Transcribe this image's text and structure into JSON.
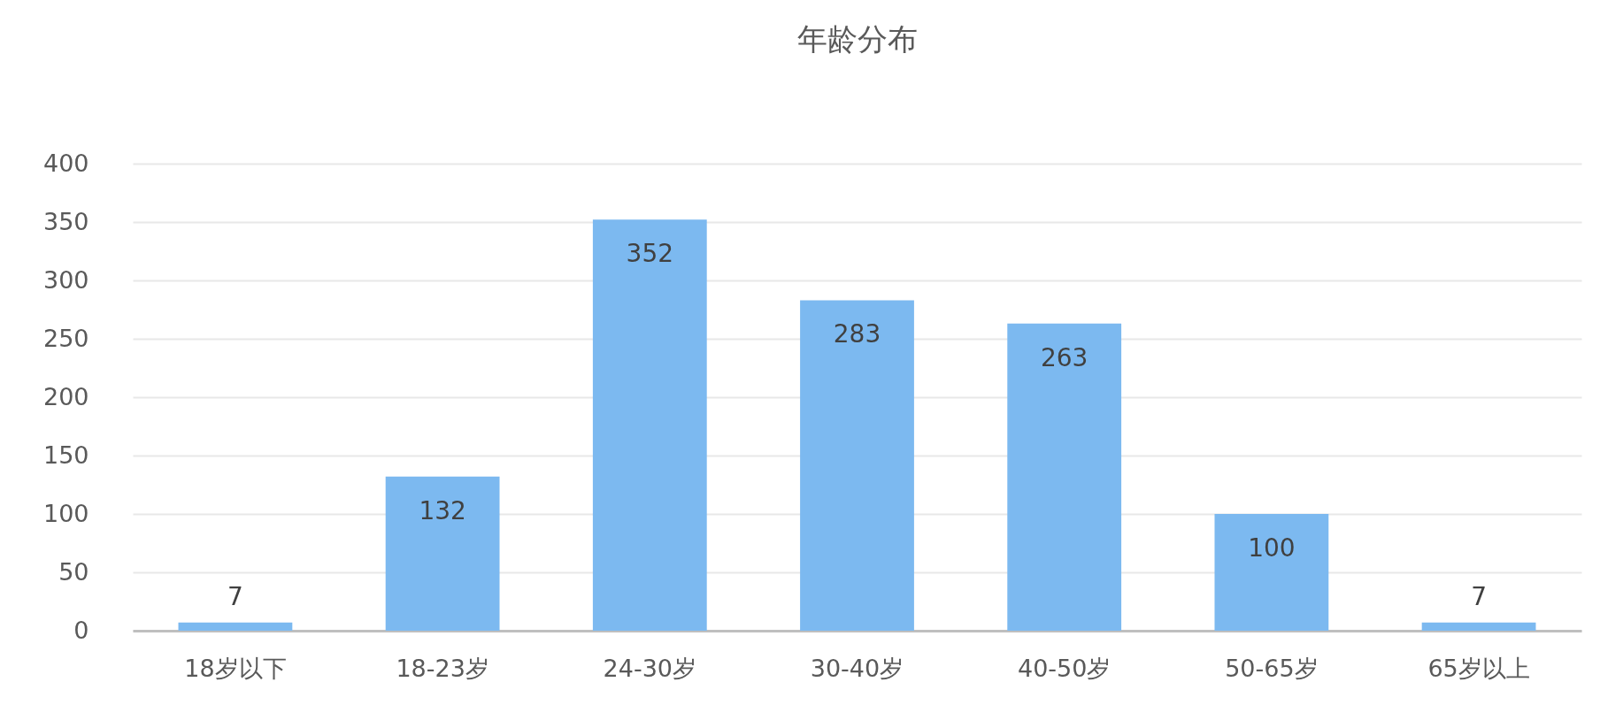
{
  "chart_data": {
    "type": "bar",
    "title": "年龄分布",
    "categories": [
      "18岁以下",
      "18-23岁",
      "24-30岁",
      "30-40岁",
      "40-50岁",
      "50-65岁",
      "65岁以上"
    ],
    "values": [
      7,
      132,
      352,
      283,
      263,
      100,
      7
    ],
    "color": "#7cb9f0",
    "ylim": [
      0,
      400
    ],
    "yticks": [
      0,
      50,
      100,
      150,
      200,
      250,
      300,
      350,
      400
    ],
    "grid": "y",
    "data_labels": true
  }
}
